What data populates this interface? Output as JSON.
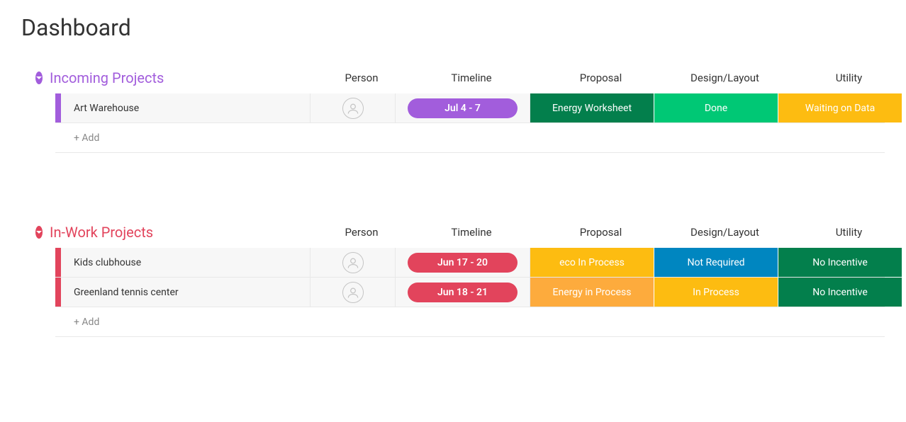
{
  "page": {
    "title": "Dashboard"
  },
  "columns": {
    "person": "Person",
    "timeline": "Timeline",
    "proposal": "Proposal",
    "design": "Design/Layout",
    "utility": "Utility"
  },
  "addLabel": "+ Add",
  "groups": [
    {
      "id": "incoming",
      "title": "Incoming Projects",
      "color": "#a25ddc",
      "accent": "#a25ddc",
      "rows": [
        {
          "name": "Art Warehouse",
          "timeline": {
            "label": "Jul 4 - 7",
            "color": "#a25ddc"
          },
          "proposal": {
            "label": "Energy Worksheet",
            "color": "#037f4c"
          },
          "design": {
            "label": "Done",
            "color": "#00c875"
          },
          "utility": {
            "label": "Waiting on Data",
            "color": "#fdbc11"
          }
        }
      ]
    },
    {
      "id": "inwork",
      "title": "In-Work Projects",
      "color": "#e2445c",
      "accent": "#e2445c",
      "rows": [
        {
          "name": "Kids clubhouse",
          "timeline": {
            "label": "Jun 17 - 20",
            "color": "#e2445c"
          },
          "proposal": {
            "label": "eco In Process",
            "color": "#fdbc11"
          },
          "design": {
            "label": "Not Required",
            "color": "#0086c0"
          },
          "utility": {
            "label": "No Incentive",
            "color": "#037f4c"
          }
        },
        {
          "name": "Greenland tennis center",
          "timeline": {
            "label": "Jun 18 - 21",
            "color": "#e2445c"
          },
          "proposal": {
            "label": "Energy in Process",
            "color": "#fdab3d"
          },
          "design": {
            "label": "In Process",
            "color": "#fdbc11"
          },
          "utility": {
            "label": "No Incentive",
            "color": "#037f4c"
          }
        }
      ]
    }
  ]
}
